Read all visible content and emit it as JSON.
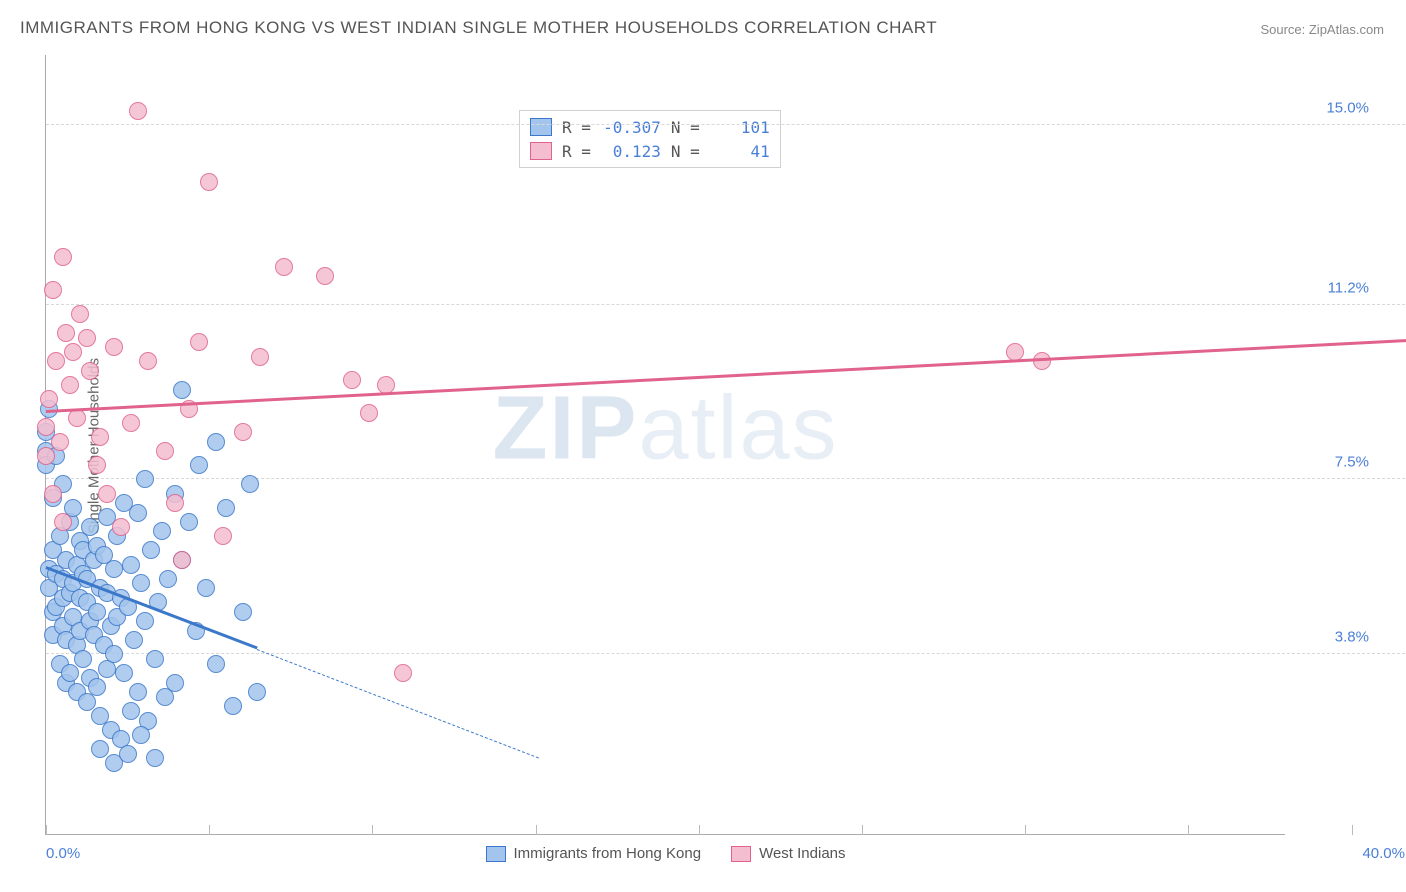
{
  "title": "IMMIGRANTS FROM HONG KONG VS WEST INDIAN SINGLE MOTHER HOUSEHOLDS CORRELATION CHART",
  "source": "Source: ZipAtlas.com",
  "y_axis_label": "Single Mother Households",
  "watermark": {
    "bold": "ZIP",
    "light": "atlas"
  },
  "chart": {
    "type": "scatter",
    "background_color": "#ffffff",
    "grid_color": "#d8d8d8",
    "axis_color": "#aaaaaa",
    "xlim": [
      0,
      40
    ],
    "ylim": [
      0,
      16.5
    ],
    "y_ticks": [
      {
        "v": 3.8,
        "label": "3.8%"
      },
      {
        "v": 7.5,
        "label": "7.5%"
      },
      {
        "v": 11.2,
        "label": "11.2%"
      },
      {
        "v": 15.0,
        "label": "15.0%"
      }
    ],
    "x_tick_positions": [
      0,
      4.8,
      9.6,
      14.4,
      19.2,
      24.0,
      28.8,
      33.6,
      38.4
    ],
    "x_start_label": "0.0%",
    "x_end_label": "40.0%",
    "tick_label_color": "#4a7fd8",
    "tick_label_fontsize": 15,
    "point_radius": 9,
    "point_border_width": 1.5,
    "point_fill_opacity": 0.35,
    "trend_line_width_solid": 3,
    "trend_line_width_dash": 1.5,
    "series": [
      {
        "name": "Immigrants from Hong Kong",
        "key": "hk",
        "color_border": "#3b78c9",
        "color_fill": "#a3c4ec",
        "R": "-0.307",
        "N": "101",
        "trend": {
          "x1": 0,
          "y1": 5.6,
          "x2": 6.2,
          "y2": 3.9,
          "solid": true
        },
        "trend_ext": {
          "x1": 6.2,
          "y1": 3.9,
          "x2": 14.5,
          "y2": 1.6
        },
        "points": [
          [
            0.0,
            8.5
          ],
          [
            0.0,
            8.1
          ],
          [
            0.0,
            7.8
          ],
          [
            0.1,
            9.0
          ],
          [
            0.1,
            5.6
          ],
          [
            0.1,
            5.2
          ],
          [
            0.2,
            4.2
          ],
          [
            0.2,
            4.7
          ],
          [
            0.2,
            6.0
          ],
          [
            0.2,
            7.1
          ],
          [
            0.3,
            8.0
          ],
          [
            0.3,
            4.8
          ],
          [
            0.3,
            5.5
          ],
          [
            0.4,
            3.6
          ],
          [
            0.4,
            6.3
          ],
          [
            0.5,
            5.0
          ],
          [
            0.5,
            5.4
          ],
          [
            0.5,
            7.4
          ],
          [
            0.5,
            4.4
          ],
          [
            0.6,
            3.2
          ],
          [
            0.6,
            5.8
          ],
          [
            0.6,
            4.1
          ],
          [
            0.7,
            6.6
          ],
          [
            0.7,
            5.1
          ],
          [
            0.7,
            3.4
          ],
          [
            0.8,
            4.6
          ],
          [
            0.8,
            5.3
          ],
          [
            0.8,
            6.9
          ],
          [
            0.9,
            4.0
          ],
          [
            0.9,
            5.7
          ],
          [
            0.9,
            3.0
          ],
          [
            1.0,
            5.0
          ],
          [
            1.0,
            6.2
          ],
          [
            1.0,
            4.3
          ],
          [
            1.1,
            5.5
          ],
          [
            1.1,
            3.7
          ],
          [
            1.1,
            6.0
          ],
          [
            1.2,
            4.9
          ],
          [
            1.2,
            5.4
          ],
          [
            1.2,
            2.8
          ],
          [
            1.3,
            6.5
          ],
          [
            1.3,
            4.5
          ],
          [
            1.3,
            3.3
          ],
          [
            1.4,
            5.8
          ],
          [
            1.4,
            4.2
          ],
          [
            1.5,
            6.1
          ],
          [
            1.5,
            3.1
          ],
          [
            1.5,
            4.7
          ],
          [
            1.6,
            5.2
          ],
          [
            1.6,
            2.5
          ],
          [
            1.7,
            5.9
          ],
          [
            1.7,
            4.0
          ],
          [
            1.8,
            6.7
          ],
          [
            1.8,
            3.5
          ],
          [
            1.8,
            5.1
          ],
          [
            1.9,
            4.4
          ],
          [
            1.9,
            2.2
          ],
          [
            2.0,
            5.6
          ],
          [
            2.0,
            3.8
          ],
          [
            2.1,
            6.3
          ],
          [
            2.1,
            4.6
          ],
          [
            2.2,
            2.0
          ],
          [
            2.2,
            5.0
          ],
          [
            2.3,
            7.0
          ],
          [
            2.3,
            3.4
          ],
          [
            2.4,
            4.8
          ],
          [
            2.5,
            5.7
          ],
          [
            2.5,
            2.6
          ],
          [
            2.6,
            4.1
          ],
          [
            2.7,
            6.8
          ],
          [
            2.7,
            3.0
          ],
          [
            2.8,
            5.3
          ],
          [
            2.9,
            7.5
          ],
          [
            2.9,
            4.5
          ],
          [
            3.0,
            2.4
          ],
          [
            3.1,
            6.0
          ],
          [
            3.2,
            3.7
          ],
          [
            3.3,
            4.9
          ],
          [
            3.4,
            6.4
          ],
          [
            3.5,
            2.9
          ],
          [
            3.6,
            5.4
          ],
          [
            3.8,
            7.2
          ],
          [
            3.8,
            3.2
          ],
          [
            4.0,
            5.8
          ],
          [
            4.0,
            9.4
          ],
          [
            4.2,
            6.6
          ],
          [
            4.4,
            4.3
          ],
          [
            4.5,
            7.8
          ],
          [
            4.7,
            5.2
          ],
          [
            5.0,
            8.3
          ],
          [
            5.0,
            3.6
          ],
          [
            5.3,
            6.9
          ],
          [
            5.5,
            2.7
          ],
          [
            5.8,
            4.7
          ],
          [
            6.0,
            7.4
          ],
          [
            6.2,
            3.0
          ],
          [
            1.6,
            1.8
          ],
          [
            2.0,
            1.5
          ],
          [
            2.4,
            1.7
          ],
          [
            2.8,
            2.1
          ],
          [
            3.2,
            1.6
          ]
        ]
      },
      {
        "name": "West Indians",
        "key": "wi",
        "color_border": "#e0628d",
        "color_fill": "#f4bed0",
        "R": "0.123",
        "N": "41",
        "trend": {
          "x1": 0,
          "y1": 8.9,
          "x2": 40,
          "y2": 10.4,
          "solid": true
        },
        "points": [
          [
            0.0,
            8.6
          ],
          [
            0.0,
            8.0
          ],
          [
            0.1,
            9.2
          ],
          [
            0.2,
            11.5
          ],
          [
            0.2,
            7.2
          ],
          [
            0.3,
            10.0
          ],
          [
            0.4,
            8.3
          ],
          [
            0.5,
            12.2
          ],
          [
            0.5,
            6.6
          ],
          [
            0.6,
            10.6
          ],
          [
            0.7,
            9.5
          ],
          [
            0.8,
            10.2
          ],
          [
            0.9,
            8.8
          ],
          [
            1.0,
            11.0
          ],
          [
            1.2,
            10.5
          ],
          [
            1.3,
            9.8
          ],
          [
            1.5,
            7.8
          ],
          [
            1.6,
            8.4
          ],
          [
            1.8,
            7.2
          ],
          [
            2.0,
            10.3
          ],
          [
            2.2,
            6.5
          ],
          [
            2.5,
            8.7
          ],
          [
            2.7,
            15.3
          ],
          [
            3.0,
            10.0
          ],
          [
            3.5,
            8.1
          ],
          [
            3.8,
            7.0
          ],
          [
            4.2,
            9.0
          ],
          [
            4.5,
            10.4
          ],
          [
            4.8,
            13.8
          ],
          [
            5.2,
            6.3
          ],
          [
            5.8,
            8.5
          ],
          [
            6.3,
            10.1
          ],
          [
            7.0,
            12.0
          ],
          [
            8.2,
            11.8
          ],
          [
            9.0,
            9.6
          ],
          [
            9.5,
            8.9
          ],
          [
            10.0,
            9.5
          ],
          [
            10.5,
            3.4
          ],
          [
            28.5,
            10.2
          ],
          [
            29.3,
            10.0
          ],
          [
            4.0,
            5.8
          ]
        ]
      }
    ]
  },
  "legend_top": {
    "r_label": "R =",
    "n_label": "N ="
  }
}
